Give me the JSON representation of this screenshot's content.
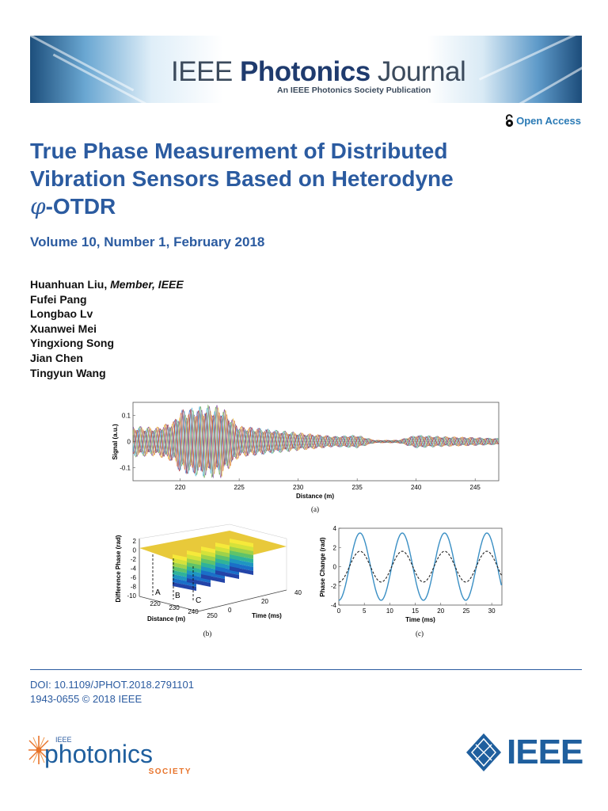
{
  "header": {
    "journal_prefix": "IEEE",
    "journal_name_bold": "Photonics",
    "journal_suffix": "Journal",
    "journal_subtitle": "An IEEE Photonics Society Publication",
    "open_access_label": "Open Access"
  },
  "article": {
    "title_line1": "True Phase Measurement of Distributed",
    "title_line2": "Vibration Sensors Based on Heterodyne",
    "title_phi": "φ",
    "title_line3_rest": "-OTDR",
    "volume": "Volume 10, Number 1, February 2018",
    "authors": [
      {
        "name": "Huanhuan Liu,",
        "affiliation": "Member, IEEE"
      },
      {
        "name": "Fufei Pang",
        "affiliation": ""
      },
      {
        "name": "Longbao Lv",
        "affiliation": ""
      },
      {
        "name": "Xuanwei Mei",
        "affiliation": ""
      },
      {
        "name": "Yingxiong Song",
        "affiliation": ""
      },
      {
        "name": "Jian Chen",
        "affiliation": ""
      },
      {
        "name": "Tingyun Wang",
        "affiliation": ""
      }
    ]
  },
  "footer": {
    "doi": "DOI: 10.1109/JPHOT.2018.2791101",
    "issn": "1943-0655 © 2018 IEEE",
    "society_small": "IEEE",
    "society_name": "photonics",
    "society_word": "SOCIETY",
    "ieee_wordmark": "IEEE"
  },
  "colors": {
    "title_blue": "#2b5ba0",
    "journal_navy": "#1f3b6e",
    "plot_blue": "#3a8fc4",
    "society_orange": "#e8732a",
    "ieee_blue": "#1f5f9e"
  },
  "chart_data": [
    {
      "type": "line",
      "panel_label": "(a)",
      "xlabel": "Distance (m)",
      "ylabel": "Signal (a.u.)",
      "xlim": [
        216,
        247
      ],
      "ylim": [
        -0.15,
        0.15
      ],
      "x_ticks": [
        "220",
        "225",
        "230",
        "235",
        "240",
        "245"
      ],
      "y_ticks": [
        "0.1",
        "0",
        "-0.1"
      ],
      "series_colors": [
        "#3f6fc8",
        "#d9622b",
        "#e6b82a",
        "#7a3f9a",
        "#6aa84f",
        "#4fb3d9",
        "#a3212b"
      ],
      "envelope": [
        {
          "x": 216,
          "amp": 0.06
        },
        {
          "x": 218,
          "amp": 0.055
        },
        {
          "x": 219.5,
          "amp": 0.08
        },
        {
          "x": 220,
          "amp": 0.12
        },
        {
          "x": 222,
          "amp": 0.14
        },
        {
          "x": 223.5,
          "amp": 0.14
        },
        {
          "x": 225,
          "amp": 0.06
        },
        {
          "x": 227,
          "amp": 0.05
        },
        {
          "x": 229,
          "amp": 0.04
        },
        {
          "x": 233,
          "amp": 0.02
        },
        {
          "x": 235,
          "amp": 0.025
        },
        {
          "x": 236.5,
          "amp": 0.005
        },
        {
          "x": 238.5,
          "amp": 0.005
        },
        {
          "x": 240,
          "amp": 0.025
        },
        {
          "x": 242,
          "amp": 0.02
        },
        {
          "x": 247,
          "amp": 0.012
        }
      ]
    },
    {
      "type": "surface",
      "panel_label": "(b)",
      "xlabel": "Distance (m)",
      "ylabel": "Time (ms)",
      "zlabel": "Difference Phase (rad)",
      "x_ticks": [
        "220",
        "230",
        "240",
        "250"
      ],
      "y_ticks": [
        "0",
        "20",
        "40"
      ],
      "z_ticks": [
        "2",
        "0",
        "-2",
        "-4",
        "-6",
        "-8",
        "-10"
      ],
      "markers": [
        "A",
        "B",
        "C"
      ]
    },
    {
      "type": "line",
      "panel_label": "(c)",
      "xlabel": "Time (ms)",
      "ylabel": "Phase Change (rad)",
      "xlim": [
        0,
        32
      ],
      "ylim": [
        -4,
        4
      ],
      "x_ticks": [
        "0",
        "5",
        "10",
        "15",
        "20",
        "25",
        "30"
      ],
      "y_ticks": [
        "4",
        "2",
        "0",
        "-2",
        "-4"
      ],
      "series": [
        {
          "style": "solid",
          "color": "#3a8fc4",
          "amplitude": 3.5,
          "period_ms": 8.3,
          "phase_deg": -90
        },
        {
          "style": "dashed",
          "color": "#222222",
          "amplitude": 1.6,
          "period_ms": 8.3,
          "phase_deg": -90
        }
      ]
    }
  ]
}
